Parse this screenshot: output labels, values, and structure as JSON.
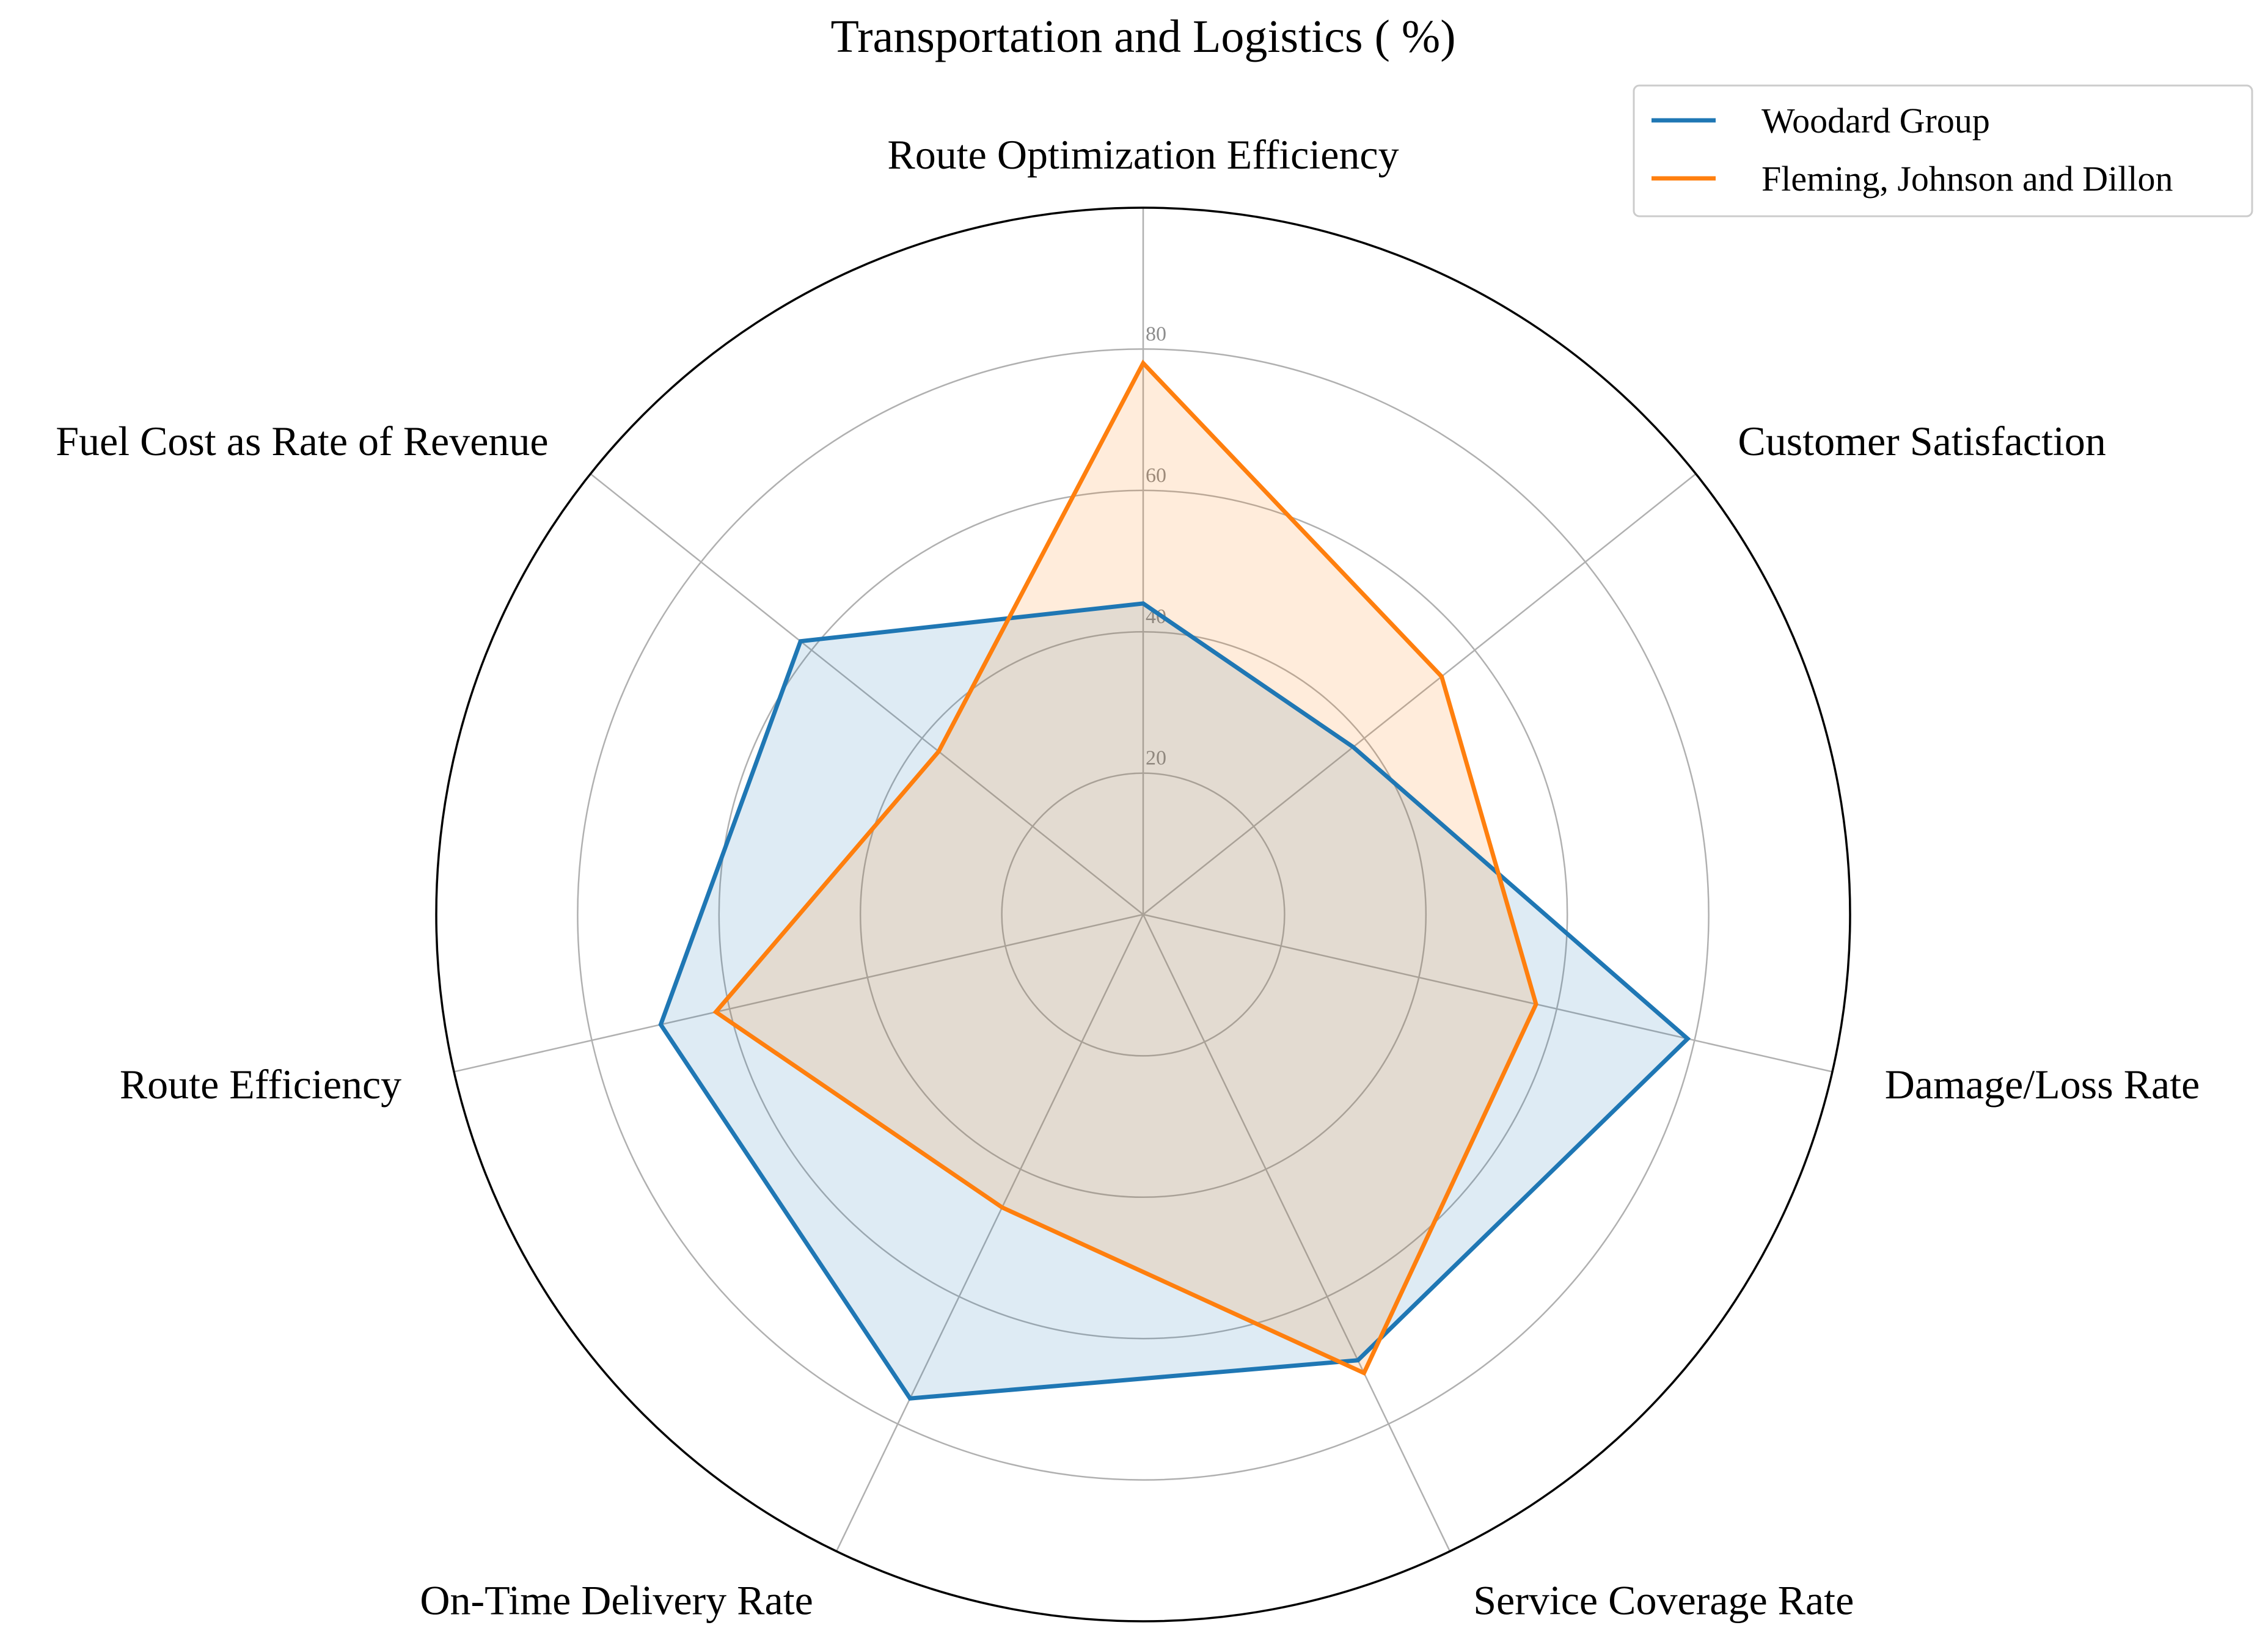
{
  "chart_data": {
    "type": "radar",
    "title": "Transportation and Logistics ( %)",
    "axes": [
      "Route Optimization Efficiency",
      "Customer Satisfaction",
      "Damage/Loss Rate",
      "Service Coverage Rate",
      "On-Time Delivery Rate",
      "Route Efficiency",
      "Fuel Cost as Rate of Revenue"
    ],
    "rlim": [
      0,
      100
    ],
    "r_ticks": [
      20,
      40,
      60,
      80
    ],
    "r_tick_labels": [
      "20",
      "40",
      "60",
      "80"
    ],
    "grid": true,
    "legend_position": "top-right",
    "series": [
      {
        "name": "Woodard Group",
        "color": "#1f77b4",
        "values": [
          44,
          38,
          79,
          70,
          76,
          70,
          62
        ]
      },
      {
        "name": "Fleming, Johnson and Dillon",
        "color": "#ff7f0e",
        "values": [
          78,
          54,
          57,
          72,
          46,
          62,
          37
        ]
      }
    ]
  }
}
